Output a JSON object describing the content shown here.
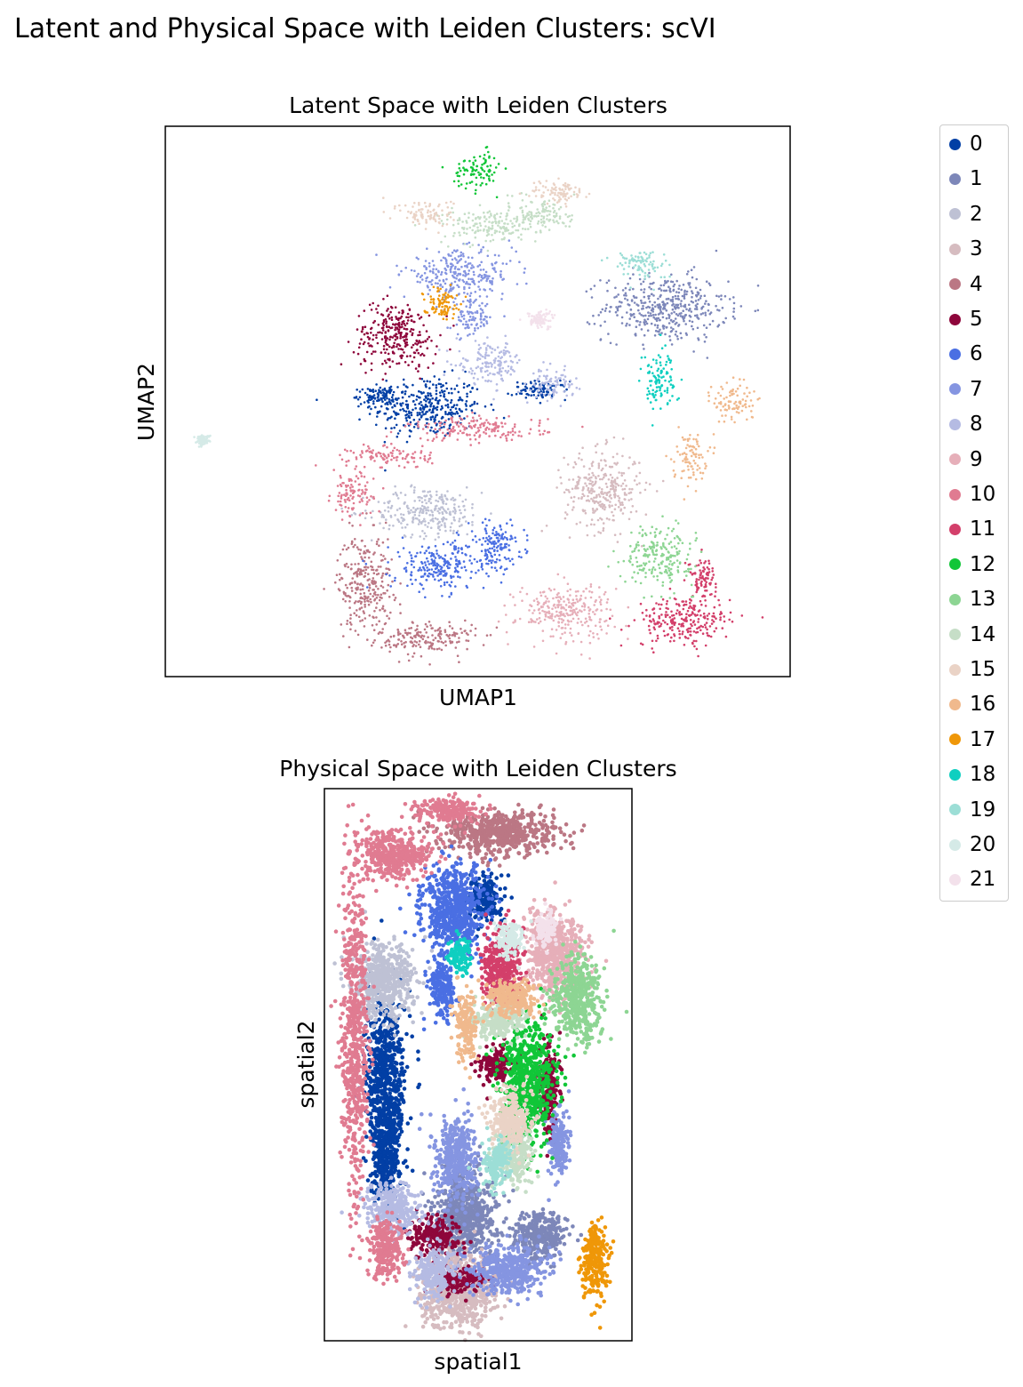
{
  "figure": {
    "suptitle": "Latent and Physical Space with Leiden Clusters: scVI"
  },
  "chart_data": [
    {
      "type": "scatter",
      "title": "Latent Space with Leiden Clusters",
      "xlabel": "UMAP1",
      "ylabel": "UMAP2",
      "grid": false,
      "ticks": false,
      "legend": "right (shared)",
      "xlim": [
        0,
        100
      ],
      "ylim": [
        0,
        100
      ],
      "clusters": [
        {
          "name": "0",
          "blobs": [
            [
              42,
              49,
              8,
              5
            ],
            [
              34,
              51,
              3,
              1.5
            ],
            [
              60,
              52,
              4,
              1.5
            ]
          ]
        },
        {
          "name": "1",
          "blobs": [
            [
              80,
              67,
              9,
              5.5
            ]
          ]
        },
        {
          "name": "2",
          "blobs": [
            [
              42,
              30,
              8,
              4
            ]
          ]
        },
        {
          "name": "3",
          "blobs": [
            [
              70,
              34,
              5.5,
              6.5
            ]
          ]
        },
        {
          "name": "4",
          "blobs": [
            [
              32,
              17,
              4,
              8
            ],
            [
              42,
              7,
              7,
              3
            ]
          ]
        },
        {
          "name": "5",
          "blobs": [
            [
              37,
              62,
              6,
              5.5
            ]
          ]
        },
        {
          "name": "6",
          "blobs": [
            [
              44,
              20,
              7,
              4
            ],
            [
              53,
              24,
              4,
              4
            ]
          ]
        },
        {
          "name": "7",
          "blobs": [
            [
              47,
              73,
              8,
              4
            ],
            [
              49,
              65,
              3,
              3
            ]
          ]
        },
        {
          "name": "8",
          "blobs": [
            [
              52,
              57,
              5,
              3.5
            ],
            [
              62,
              53,
              3,
              2.5
            ]
          ]
        },
        {
          "name": "9",
          "blobs": [
            [
              64,
              12,
              7,
              4.5
            ]
          ]
        },
        {
          "name": "10",
          "blobs": [
            [
              36,
              40,
              6,
              2
            ],
            [
              50,
              45,
              10,
              2
            ],
            [
              30,
              33,
              3,
              4
            ]
          ]
        },
        {
          "name": "11",
          "blobs": [
            [
              83,
              10,
              7,
              4
            ],
            [
              86,
              18,
              2,
              3
            ]
          ]
        },
        {
          "name": "12",
          "blobs": [
            [
              50,
              92,
              3.5,
              3
            ]
          ]
        },
        {
          "name": "13",
          "blobs": [
            [
              79,
              22,
              5,
              5
            ]
          ]
        },
        {
          "name": "14",
          "blobs": [
            [
              52,
              82,
              7,
              3
            ],
            [
              61,
              84,
              4,
              3
            ]
          ]
        },
        {
          "name": "15",
          "blobs": [
            [
              42,
              84,
              4,
              2.5
            ],
            [
              63,
              88,
              4,
              2
            ]
          ]
        },
        {
          "name": "16",
          "blobs": [
            [
              91,
              50,
              3,
              3.5
            ],
            [
              84,
              40,
              2.5,
              4
            ]
          ]
        },
        {
          "name": "17",
          "blobs": [
            [
              44,
              68,
              2.5,
              2.5
            ]
          ]
        },
        {
          "name": "18",
          "blobs": [
            [
              79,
              54,
              2.5,
              5
            ]
          ]
        },
        {
          "name": "19",
          "blobs": [
            [
              76,
              75,
              4,
              2.5
            ]
          ]
        },
        {
          "name": "20",
          "blobs": [
            [
              6,
              43,
              1,
              0.8
            ]
          ]
        },
        {
          "name": "21",
          "blobs": [
            [
              60,
              65,
              2,
              1.5
            ]
          ]
        }
      ]
    },
    {
      "type": "scatter",
      "title": "Physical Space with Leiden Clusters",
      "xlabel": "spatial1",
      "ylabel": "spatial2",
      "grid": false,
      "ticks": false,
      "xlim": [
        0,
        100
      ],
      "ylim": [
        0,
        100
      ],
      "clusters": [
        {
          "name": "0",
          "blobs": [
            [
              20,
              47,
              6,
              14
            ],
            [
              20,
              33,
              4,
              8
            ],
            [
              52,
              80,
              5,
              4
            ]
          ]
        },
        {
          "name": "1",
          "blobs": [
            [
              46,
              23,
              9,
              7
            ],
            [
              70,
              19,
              8,
              4
            ]
          ]
        },
        {
          "name": "2",
          "blobs": [
            [
              19,
              65,
              9,
              6
            ]
          ]
        },
        {
          "name": "3",
          "blobs": [
            [
              44,
              9,
              11,
              6
            ]
          ]
        },
        {
          "name": "4",
          "blobs": [
            [
              57,
              92,
              17,
              3.5
            ]
          ]
        },
        {
          "name": "5",
          "blobs": [
            [
              36,
              19,
              7,
              3
            ],
            [
              56,
              50,
              5,
              3
            ],
            [
              73,
              46,
              3,
              8
            ],
            [
              44,
              11,
              8,
              2
            ]
          ]
        },
        {
          "name": "6",
          "blobs": [
            [
              42,
              78,
              9,
              7
            ],
            [
              38,
              64,
              4,
              5
            ]
          ]
        },
        {
          "name": "7",
          "blobs": [
            [
              60,
              13,
              11,
              4
            ],
            [
              43,
              33,
              6,
              7
            ],
            [
              76,
              35,
              3,
              6
            ]
          ]
        },
        {
          "name": "8",
          "blobs": [
            [
              22,
              24,
              8,
              4
            ],
            [
              36,
              12,
              6,
              4
            ]
          ]
        },
        {
          "name": "9",
          "blobs": [
            [
              75,
              70,
              9,
              7
            ]
          ]
        },
        {
          "name": "10",
          "blobs": [
            [
              10,
              55,
              4,
              25
            ],
            [
              22,
              88,
              11,
              4
            ],
            [
              40,
              96,
              10,
              2
            ],
            [
              20,
              17,
              5,
              5
            ]
          ]
        },
        {
          "name": "11",
          "blobs": [
            [
              58,
              68,
              6,
              6
            ]
          ]
        },
        {
          "name": "12",
          "blobs": [
            [
              66,
              47,
              8,
              10
            ]
          ]
        },
        {
          "name": "13",
          "blobs": [
            [
              82,
              62,
              7,
              7
            ]
          ]
        },
        {
          "name": "14",
          "blobs": [
            [
              56,
              58,
              8,
              3
            ],
            [
              62,
              34,
              5,
              5
            ]
          ]
        },
        {
          "name": "15",
          "blobs": [
            [
              60,
              40,
              6,
              5
            ]
          ]
        },
        {
          "name": "16",
          "blobs": [
            [
              46,
              57,
              3,
              6
            ],
            [
              61,
              62,
              8,
              3
            ]
          ]
        },
        {
          "name": "17",
          "blobs": [
            [
              88,
              14,
              4,
              6
            ]
          ]
        },
        {
          "name": "18",
          "blobs": [
            [
              44,
              70,
              3,
              3
            ]
          ]
        },
        {
          "name": "19",
          "blobs": [
            [
              56,
              32,
              4,
              4
            ]
          ]
        },
        {
          "name": "20",
          "blobs": [
            [
              60,
              73,
              4,
              3
            ]
          ]
        },
        {
          "name": "21",
          "blobs": [
            [
              72,
              74,
              3,
              3
            ]
          ]
        }
      ]
    }
  ],
  "legend": {
    "items": [
      {
        "label": "0",
        "color": "#023fa5"
      },
      {
        "label": "1",
        "color": "#7d87b9"
      },
      {
        "label": "2",
        "color": "#bec1d4"
      },
      {
        "label": "3",
        "color": "#d6bcc0"
      },
      {
        "label": "4",
        "color": "#bb7784"
      },
      {
        "label": "5",
        "color": "#8e063b"
      },
      {
        "label": "6",
        "color": "#4a6fe3"
      },
      {
        "label": "7",
        "color": "#8595e1"
      },
      {
        "label": "8",
        "color": "#b5bbe3"
      },
      {
        "label": "9",
        "color": "#e6afb9"
      },
      {
        "label": "10",
        "color": "#e07b91"
      },
      {
        "label": "11",
        "color": "#d33f6a"
      },
      {
        "label": "12",
        "color": "#11c638"
      },
      {
        "label": "13",
        "color": "#8dd593"
      },
      {
        "label": "14",
        "color": "#c6dec7"
      },
      {
        "label": "15",
        "color": "#ead3c6"
      },
      {
        "label": "16",
        "color": "#f0b98d"
      },
      {
        "label": "17",
        "color": "#ef9708"
      },
      {
        "label": "18",
        "color": "#0fcfc0"
      },
      {
        "label": "19",
        "color": "#9cded6"
      },
      {
        "label": "20",
        "color": "#d5eae7"
      },
      {
        "label": "21",
        "color": "#f3e1eb"
      }
    ]
  }
}
